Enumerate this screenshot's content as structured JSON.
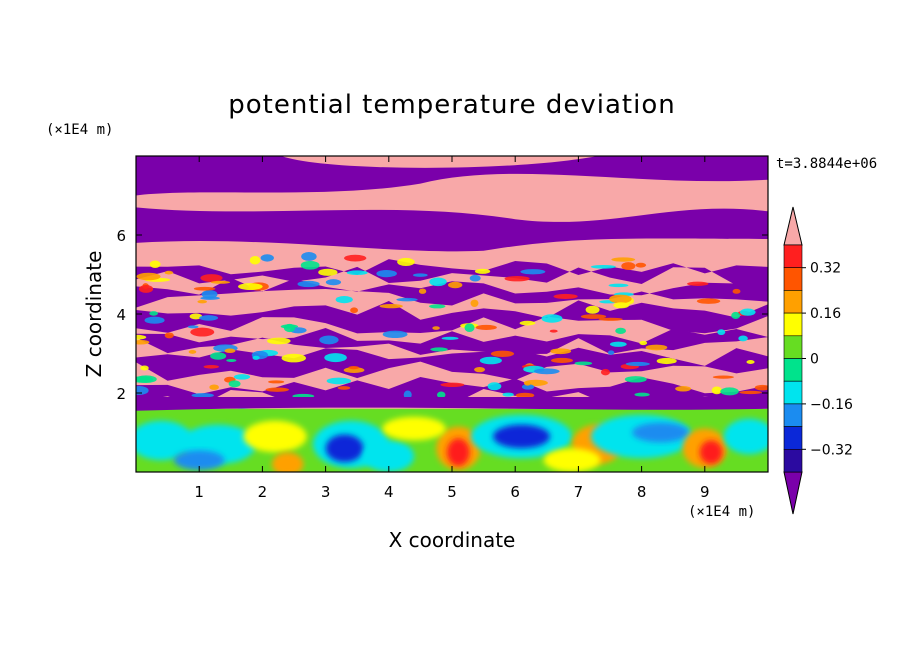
{
  "chart_data": {
    "type": "heatmap",
    "title": "potential temperature deviation",
    "xlabel": "X coordinate",
    "ylabel": "Z coordinate",
    "x_unit": "(×1E4 m)",
    "y_unit": "(×1E4 m)",
    "time_label": "t=3.8844e+06",
    "xlim": [
      0,
      10
    ],
    "ylim": [
      0,
      8
    ],
    "x_ticks": [
      "1",
      "2",
      "3",
      "4",
      "5",
      "6",
      "7",
      "8",
      "9"
    ],
    "y_ticks": [
      "2",
      "4",
      "6"
    ],
    "colorbar": {
      "levels": [
        -0.4,
        -0.32,
        -0.24,
        -0.16,
        -0.08,
        0,
        0.08,
        0.16,
        0.24,
        0.32,
        0.4
      ],
      "tick_labels": [
        "0.32",
        "0.16",
        "0",
        "−0.16",
        "−0.32"
      ],
      "colors": [
        "#7a00aa",
        "#2b0aa0",
        "#0b28d8",
        "#1b8cf0",
        "#00e4ee",
        "#00e38c",
        "#66dd22",
        "#ffff00",
        "#ffa000",
        "#ff5500",
        "#ff1f1f",
        "#f8a8a8"
      ],
      "extend": "both"
    },
    "regions": [
      {
        "description": "lower layer (z 0–1.6): turbulent convective cells, cyan/blue cores with green/yellow/orange/red plumes"
      },
      {
        "description": "middle layer (z 1.6–5.5): interleaved pink and purple layers with colorful filaments"
      },
      {
        "description": "upper layer (z 5.5–8): broad pink and purple bands"
      }
    ]
  }
}
